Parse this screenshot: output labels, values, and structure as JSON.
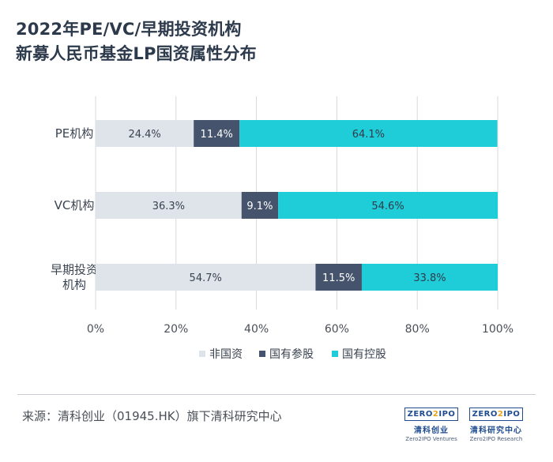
{
  "title": {
    "line1": "2022年PE/VC/早期投资机构",
    "line2": "新募人民币基金LP国资属性分布"
  },
  "chart_data": {
    "type": "bar",
    "orientation": "horizontal",
    "stacked": true,
    "categories": [
      "PE机构",
      "VC机构",
      "早期投资机构"
    ],
    "category_lines": [
      [
        "PE机构"
      ],
      [
        "VC机构"
      ],
      [
        "早期投资",
        "机构"
      ]
    ],
    "series": [
      {
        "name": "非国资",
        "values": [
          24.4,
          36.3,
          54.7
        ],
        "labels": [
          "24.4%",
          "36.3%",
          "54.7%"
        ],
        "color": "#dfe3ea",
        "text_color": "#3a4350"
      },
      {
        "name": "国有参股",
        "values": [
          11.4,
          9.1,
          11.5
        ],
        "labels": [
          "11.4%",
          "9.1%",
          "11.5%"
        ],
        "color": "#45546c",
        "text_color": "#ffffff"
      },
      {
        "name": "国有控股",
        "values": [
          64.1,
          54.6,
          33.8
        ],
        "labels": [
          "64.1%",
          "54.6%",
          "33.8%"
        ],
        "color": "#1fcdd8",
        "text_color": "#2f3b4a"
      }
    ],
    "xlim": [
      0,
      100
    ],
    "xticks": [
      0,
      20,
      40,
      60,
      80,
      100
    ],
    "xtick_labels": [
      "0%",
      "20%",
      "40%",
      "60%",
      "80%",
      "100%"
    ],
    "grid": true,
    "legend_position": "bottom"
  },
  "footer": {
    "source": "来源：清科创业（01945.HK）旗下清科研究中心"
  },
  "logos": [
    {
      "mark_left": "ZERO",
      "mark_mid": "2",
      "mark_right": "IPO",
      "cn": "清科创业",
      "en": "Zero2IPO Ventures"
    },
    {
      "mark_left": "ZERO",
      "mark_mid": "2",
      "mark_right": "IPO",
      "cn": "清科研究中心",
      "en": "Zero2IPO Research"
    }
  ]
}
